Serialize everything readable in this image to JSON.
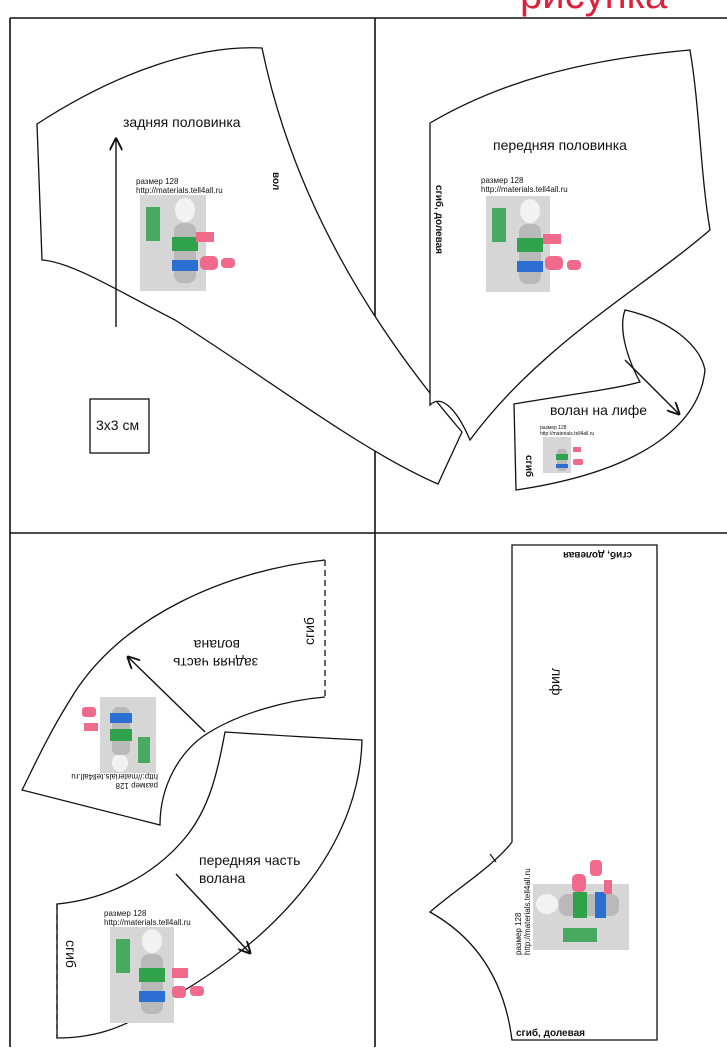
{
  "header": {
    "title_fragment": "рисунка",
    "title_color": "#e0203a"
  },
  "watermark": {
    "size_text": "размер 128",
    "url_text": "http://materials.tell4all.ru"
  },
  "pieces": {
    "back_half": {
      "label": "задняя половинка",
      "fold_label": "вол"
    },
    "front_half": {
      "label": "передняя половинка",
      "fold_label": "сгиб, долевая"
    },
    "bodice_ruffle": {
      "label": "волан на лифе",
      "fold_label": "сгиб"
    },
    "ruffle_back": {
      "label_line1": "задняя часть",
      "label_line2": "волана",
      "fold_label": "сгиб"
    },
    "ruffle_front": {
      "label_line1": "передняя часть",
      "label_line2": "волана",
      "fold_label": "сгиб"
    },
    "bodice": {
      "label": "лиф",
      "fold_top": "сгиб, долевая",
      "fold_bottom": "сгиб, долевая"
    }
  },
  "scale_box": {
    "label": "3x3 см"
  },
  "photo_colors": {
    "body": "#b9b9b9",
    "swimsuit_green": "#2fa24b",
    "swimsuit_blue": "#2a6fd1",
    "accent_pink": "#f06a8c"
  }
}
